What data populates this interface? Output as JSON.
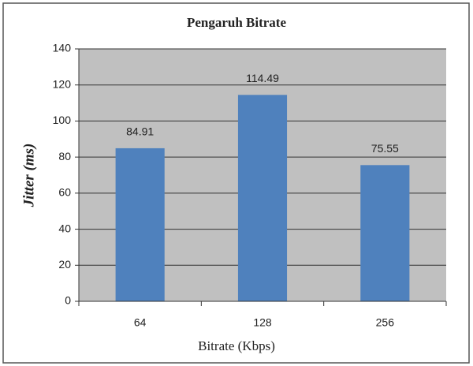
{
  "chart_data": {
    "type": "bar",
    "title": "Pengaruh Bitrate",
    "x_label": "Bitrate (Kbps)",
    "y_label": "Jitter (ms)",
    "categories": [
      "64",
      "128",
      "256"
    ],
    "values": [
      84.91,
      114.49,
      75.55
    ],
    "color": "#4f81bd",
    "ylim": [
      0,
      140
    ],
    "yticks": [
      0,
      20,
      40,
      60,
      80,
      100,
      120,
      140
    ],
    "grid": true
  }
}
